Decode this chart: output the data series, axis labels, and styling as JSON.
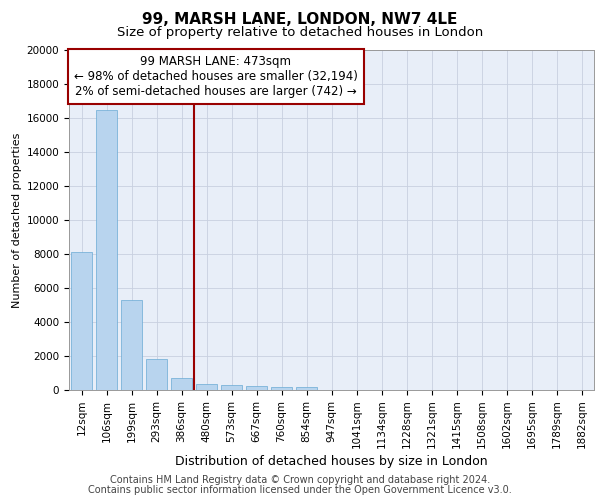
{
  "title1": "99, MARSH LANE, LONDON, NW7 4LE",
  "title2": "Size of property relative to detached houses in London",
  "xlabel": "Distribution of detached houses by size in London",
  "ylabel": "Number of detached properties",
  "categories": [
    "12sqm",
    "106sqm",
    "199sqm",
    "293sqm",
    "386sqm",
    "480sqm",
    "573sqm",
    "667sqm",
    "760sqm",
    "854sqm",
    "947sqm",
    "1041sqm",
    "1134sqm",
    "1228sqm",
    "1321sqm",
    "1415sqm",
    "1508sqm",
    "1602sqm",
    "1695sqm",
    "1789sqm",
    "1882sqm"
  ],
  "values": [
    8100,
    16500,
    5300,
    1850,
    700,
    350,
    270,
    220,
    180,
    150,
    0,
    0,
    0,
    0,
    0,
    0,
    0,
    0,
    0,
    0,
    0
  ],
  "bar_color": "#b8d4ee",
  "bar_edge_color": "#6aaad4",
  "vline_x_index": 4.5,
  "vline_color": "#990000",
  "annotation_text": "99 MARSH LANE: 473sqm\n← 98% of detached houses are smaller (32,194)\n2% of semi-detached houses are larger (742) →",
  "annotation_box_color": "#990000",
  "ylim": [
    0,
    20000
  ],
  "yticks": [
    0,
    2000,
    4000,
    6000,
    8000,
    10000,
    12000,
    14000,
    16000,
    18000,
    20000
  ],
  "footnote1": "Contains HM Land Registry data © Crown copyright and database right 2024.",
  "footnote2": "Contains public sector information licensed under the Open Government Licence v3.0.",
  "bg_color": "#e8eef8",
  "grid_color": "#c8d0e0",
  "title1_fontsize": 11,
  "title2_fontsize": 9.5,
  "xlabel_fontsize": 9,
  "ylabel_fontsize": 8,
  "tick_fontsize": 7.5,
  "annotation_fontsize": 8.5,
  "footnote_fontsize": 7
}
